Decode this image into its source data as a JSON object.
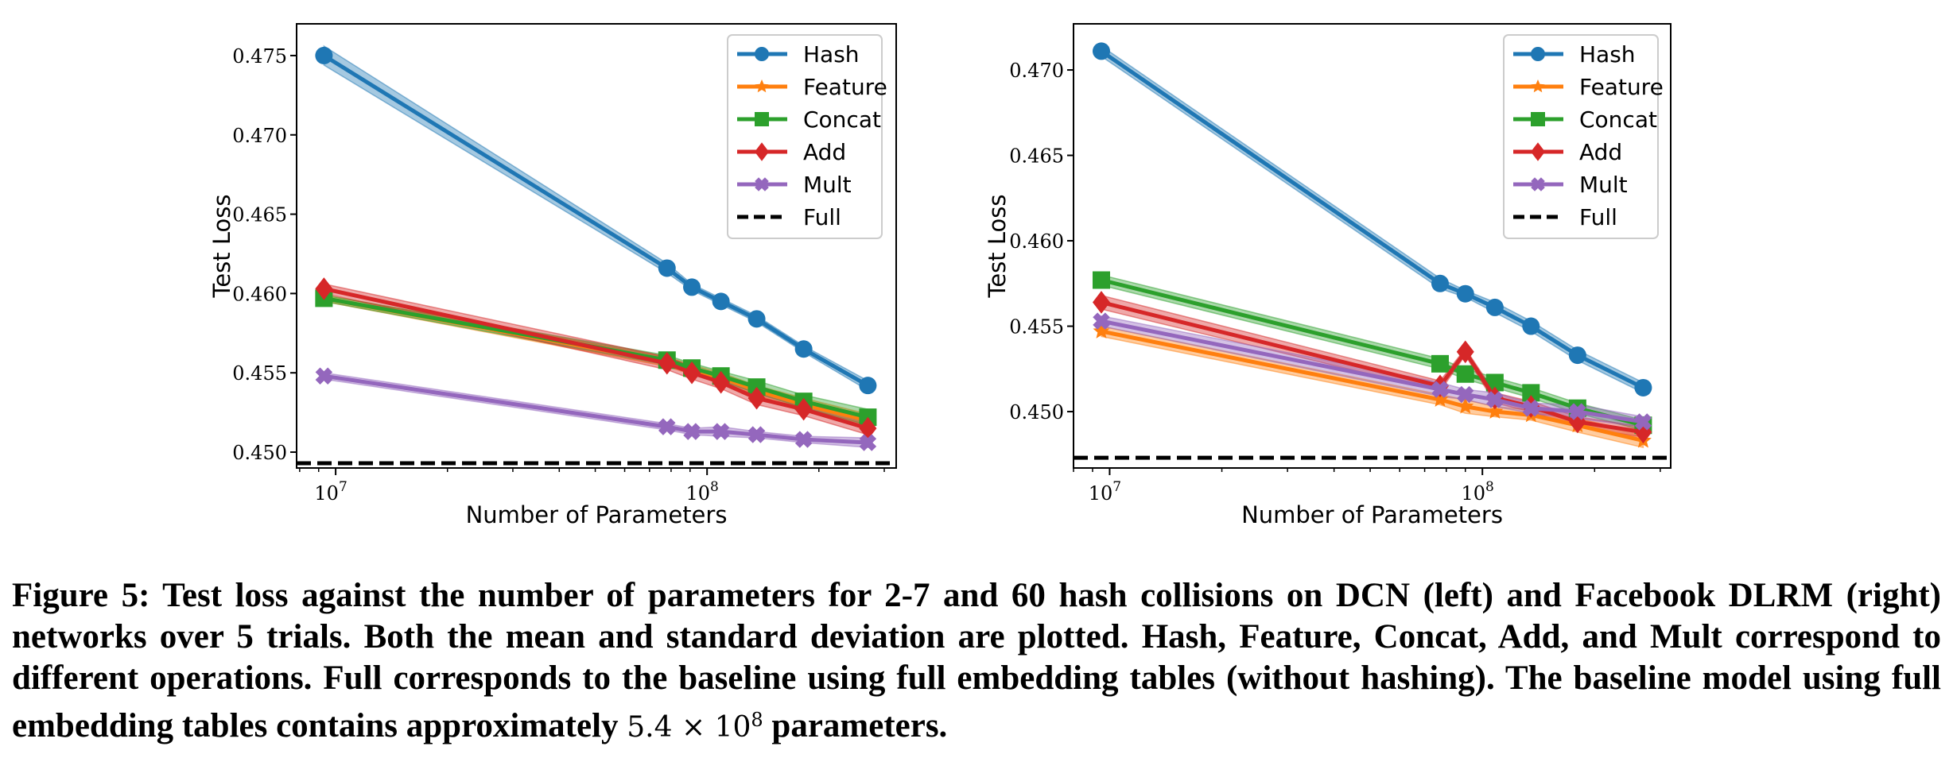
{
  "colors": {
    "Hash": "#1f77b4",
    "Feature": "#ff7f0e",
    "Concat": "#2ca02c",
    "Add": "#d62728",
    "Mult": "#9467bd",
    "Full": "#000000"
  },
  "markers": {
    "Hash": "circle",
    "Feature": "star",
    "Concat": "square",
    "Add": "diamond",
    "Mult": "x-filled"
  },
  "chart_data": [
    {
      "type": "line",
      "panel": "left",
      "xlabel": "Number of Parameters",
      "ylabel": "Test Loss",
      "xscale": "log",
      "xlim": [
        7850000.0,
        323000000.0
      ],
      "ylim": [
        0.449,
        0.477
      ],
      "xticks": [
        {
          "value": 10000000.0,
          "base": "10",
          "exp": "7"
        },
        {
          "value": 100000000.0,
          "base": "10",
          "exp": "8"
        }
      ],
      "yticks": [
        "0.450",
        "0.455",
        "0.460",
        "0.465",
        "0.470",
        "0.475"
      ],
      "grid": false,
      "legend": "top-right",
      "x": [
        9300000.0,
        78000000.0,
        91000000.0,
        109000000.0,
        136000000.0,
        182000000.0,
        271000000.0
      ],
      "series": [
        {
          "name": "Hash",
          "values": [
            0.475,
            0.4616,
            0.4604,
            0.4595,
            0.4584,
            0.4565,
            0.4542
          ],
          "std": [
            0.0006,
            0.0003,
            0.0002,
            0.0002,
            0.0002,
            0.0002,
            0.0003
          ]
        },
        {
          "name": "Feature",
          "values": [
            0.4597,
            0.4557,
            0.4552,
            0.4547,
            0.4539,
            0.453,
            0.452
          ],
          "std": [
            0.0002,
            0.0003,
            0.0003,
            0.0003,
            0.0003,
            0.0004,
            0.0004
          ]
        },
        {
          "name": "Concat",
          "values": [
            0.4597,
            0.4558,
            0.4553,
            0.4548,
            0.4541,
            0.4532,
            0.4522
          ],
          "std": [
            0.0002,
            0.0003,
            0.0003,
            0.0003,
            0.0004,
            0.0004,
            0.0005
          ]
        },
        {
          "name": "Add",
          "values": [
            0.4603,
            0.4556,
            0.455,
            0.4544,
            0.4534,
            0.4527,
            0.4515
          ],
          "std": [
            0.0003,
            0.0004,
            0.0004,
            0.0004,
            0.0004,
            0.0004,
            0.0004
          ]
        },
        {
          "name": "Mult",
          "values": [
            0.4548,
            0.4516,
            0.4513,
            0.4513,
            0.4511,
            0.4508,
            0.4506
          ],
          "std": [
            0.0002,
            0.0002,
            0.0002,
            0.0003,
            0.0002,
            0.0002,
            0.0003
          ]
        }
      ],
      "full": 0.4493
    },
    {
      "type": "line",
      "panel": "right",
      "xlabel": "Number of Parameters",
      "ylabel": "Test Loss",
      "xscale": "log",
      "xlim": [
        8000000.0,
        320000000.0
      ],
      "ylim": [
        0.4467,
        0.4727
      ],
      "xticks": [
        {
          "value": 10000000.0,
          "base": "10",
          "exp": "7"
        },
        {
          "value": 100000000.0,
          "base": "10",
          "exp": "8"
        }
      ],
      "yticks": [
        "0.450",
        "0.455",
        "0.460",
        "0.465",
        "0.470"
      ],
      "grid": false,
      "legend": "top-right",
      "x": [
        9500000.0,
        77000000.0,
        90000000.0,
        108000000.0,
        135000000.0,
        180000000.0,
        270000000.0
      ],
      "series": [
        {
          "name": "Hash",
          "values": [
            0.4711,
            0.4575,
            0.4569,
            0.4561,
            0.455,
            0.4533,
            0.4514
          ],
          "std": [
            0.0003,
            0.0003,
            0.0002,
            0.0003,
            0.0003,
            0.0003,
            0.0003
          ]
        },
        {
          "name": "Feature",
          "values": [
            0.4547,
            0.4507,
            0.4503,
            0.45,
            0.4498,
            0.4492,
            0.4483
          ],
          "std": [
            0.0003,
            0.0003,
            0.0004,
            0.0003,
            0.0003,
            0.0004,
            0.0004
          ]
        },
        {
          "name": "Concat",
          "values": [
            0.4577,
            0.4528,
            0.4522,
            0.4517,
            0.4511,
            0.4502,
            0.4492
          ],
          "std": [
            0.0003,
            0.0003,
            0.0003,
            0.0003,
            0.0003,
            0.0003,
            0.0003
          ]
        },
        {
          "name": "Add",
          "values": [
            0.4564,
            0.4515,
            0.4535,
            0.4508,
            0.4503,
            0.4494,
            0.4488
          ],
          "std": [
            0.0004,
            0.0003,
            0.0002,
            0.0003,
            0.0003,
            0.0003,
            0.0003
          ]
        },
        {
          "name": "Mult",
          "values": [
            0.4553,
            0.4513,
            0.451,
            0.4507,
            0.4502,
            0.45,
            0.4494
          ],
          "std": [
            0.0003,
            0.0004,
            0.0003,
            0.0004,
            0.0003,
            0.0004,
            0.0003
          ]
        }
      ],
      "full": 0.4473
    }
  ],
  "legend_labels": [
    "Hash",
    "Feature",
    "Concat",
    "Add",
    "Mult",
    "Full"
  ],
  "caption": {
    "text": "Figure 5: Test loss against the number of parameters for 2-7 and 60 hash collisions on DCN (left) and Facebook DLRM (right) networks over 5 trials. Both the mean and standard deviation are plotted. Hash, Feature, Concat, Add, and Mult correspond to different operations. Full corresponds to the baseline using full embedding tables (without hashing). The baseline model using full embedding tables contains approximately",
    "math_base": "5.4 × 10",
    "math_exp": "8",
    "tail": "parameters."
  }
}
